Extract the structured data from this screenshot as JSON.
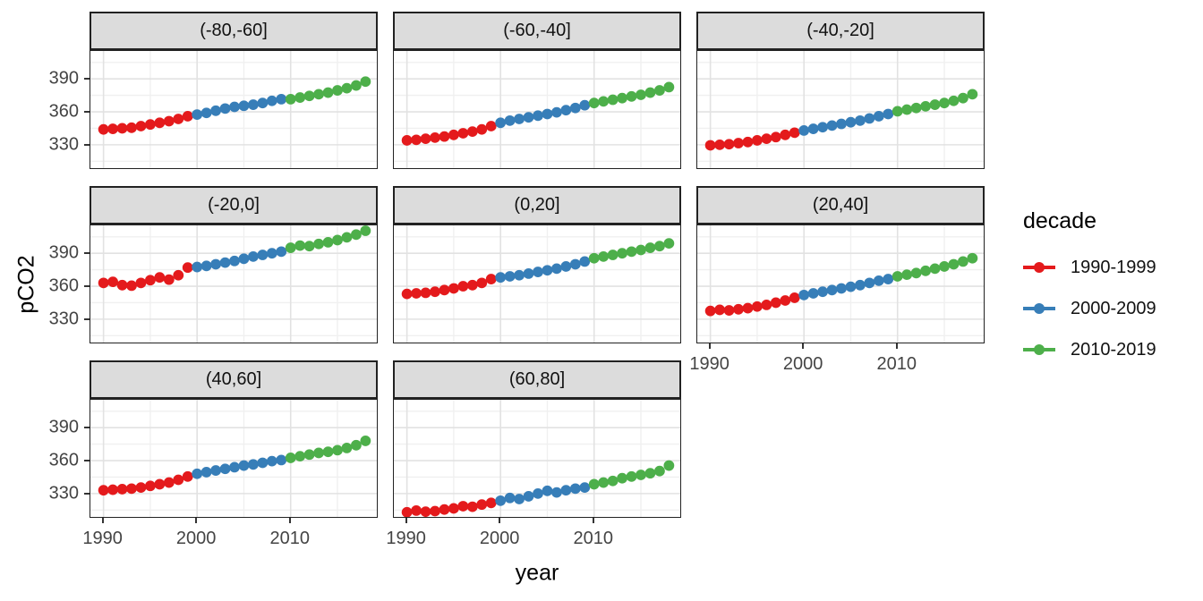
{
  "figure": {
    "x_axis_title": "year",
    "y_axis_title": "pCO2"
  },
  "legend": {
    "title": "decade",
    "entries": [
      {
        "label": "1990-1999",
        "color": "#E41A1C"
      },
      {
        "label": "2000-2009",
        "color": "#377EB8"
      },
      {
        "label": "2010-2019",
        "color": "#4DAF4A"
      }
    ]
  },
  "chart_data": {
    "type": "scatter",
    "title": "",
    "xlabel": "year",
    "ylabel": "pCO2",
    "facet_variable": "latitude band",
    "color_variable": "decade",
    "x_domain": [
      1988.6,
      2019.4
    ],
    "y_domain": [
      307.9,
      415.4
    ],
    "x_breaks": [
      1990,
      2000,
      2010
    ],
    "x_minor_breaks": [
      1995,
      2005,
      2015
    ],
    "y_breaks": [
      390,
      360,
      330
    ],
    "y_minor_breaks": [
      315,
      345,
      375,
      405
    ],
    "grid": true,
    "legend_position": "right",
    "decades": [
      {
        "label": "1990-1999",
        "from": 1990,
        "to": 1999,
        "color": "#E41A1C"
      },
      {
        "label": "2000-2009",
        "from": 2000,
        "to": 2009,
        "color": "#377EB8"
      },
      {
        "label": "2010-2019",
        "from": 2010,
        "to": 2019,
        "color": "#4DAF4A"
      }
    ],
    "years": [
      1990,
      1991,
      1992,
      1993,
      1994,
      1995,
      1996,
      1997,
      1998,
      1999,
      2000,
      2001,
      2002,
      2003,
      2004,
      2005,
      2006,
      2007,
      2008,
      2009,
      2010,
      2011,
      2012,
      2013,
      2014,
      2015,
      2016,
      2017,
      2018
    ],
    "facets": [
      {
        "label": "(-80,-60]",
        "values": [
          344,
          344.5,
          345,
          345.5,
          347,
          348.5,
          350,
          351.5,
          353.5,
          356,
          357.5,
          359,
          361,
          363,
          364.5,
          365.5,
          366.5,
          368,
          370,
          371.5,
          371.5,
          373,
          374.5,
          376,
          377.5,
          379.5,
          381.5,
          384,
          387.5
        ]
      },
      {
        "label": "(-60,-40]",
        "values": [
          334,
          334.5,
          335.5,
          336.5,
          337.5,
          339,
          340.5,
          342,
          344,
          347,
          350,
          352,
          353.5,
          355,
          356.5,
          358,
          359.5,
          361.5,
          363.5,
          366,
          368,
          369.5,
          371,
          372.5,
          374,
          375.5,
          377.5,
          379.5,
          382.5
        ]
      },
      {
        "label": "(-40,-20]",
        "values": [
          329.5,
          330,
          330.5,
          331.5,
          332.5,
          334,
          335.5,
          337,
          339,
          341,
          343,
          344.5,
          346,
          347.5,
          349,
          350.5,
          352,
          354,
          356,
          358,
          360.5,
          362,
          363.5,
          365,
          366.5,
          368,
          370,
          372.5,
          376
        ]
      },
      {
        "label": "(-20,0]",
        "values": [
          363,
          364,
          361,
          360.5,
          363,
          365.5,
          368,
          366,
          370,
          377,
          377.5,
          378.5,
          380,
          381.5,
          383,
          385,
          387,
          388.5,
          390,
          391.5,
          395,
          397,
          396.5,
          398.5,
          400,
          402,
          404.5,
          407,
          410.5
        ]
      },
      {
        "label": "(0,20]",
        "values": [
          353,
          353.5,
          354,
          355,
          356.5,
          358,
          360,
          361,
          363,
          366.5,
          368,
          369,
          370,
          371.5,
          373,
          374.5,
          376,
          378,
          380,
          382.5,
          385.5,
          387,
          388.5,
          390,
          391.5,
          393,
          395,
          396.5,
          399
        ]
      },
      {
        "label": "(20,40]",
        "values": [
          337.5,
          338.5,
          338,
          339,
          340,
          341.5,
          343,
          345,
          347,
          349.5,
          352,
          353.5,
          355,
          356.5,
          358,
          359.5,
          361,
          363,
          365,
          366.5,
          369,
          370.5,
          372,
          374,
          376,
          378,
          380,
          382.5,
          385.5
        ]
      },
      {
        "label": "(40,60]",
        "values": [
          333,
          333.5,
          334,
          334.5,
          335.5,
          337,
          338.5,
          340,
          342.5,
          345.5,
          348,
          349.5,
          351,
          352.5,
          354,
          355.5,
          356.5,
          358,
          359.5,
          360.5,
          362.5,
          364,
          365.5,
          367,
          368,
          369.5,
          371.5,
          374,
          378
        ]
      },
      {
        "label": "(60,80]",
        "values": [
          313,
          314.5,
          313.5,
          314,
          315.5,
          316.5,
          318.5,
          318,
          320,
          321.5,
          323.5,
          326,
          325,
          327.5,
          330,
          332.5,
          331,
          333,
          334.5,
          335.5,
          338.5,
          340,
          341.5,
          344,
          345.5,
          347,
          348.5,
          350.5,
          355.5
        ]
      }
    ]
  }
}
